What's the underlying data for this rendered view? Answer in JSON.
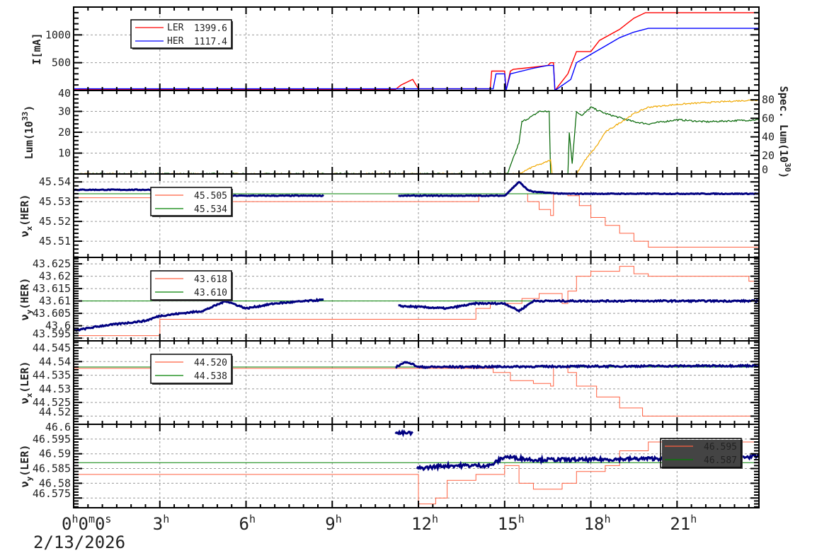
{
  "chart_data": [
    {
      "type": "line",
      "ylabel": [
        "I[mA]"
      ],
      "ylim": [
        0,
        1500
      ],
      "yticks": [
        500,
        1000
      ],
      "ytick_labels": [
        "500",
        "1000"
      ],
      "legend": [
        {
          "name": "LER",
          "value": "1399.6",
          "color": "#ff0000"
        },
        {
          "name": "HER",
          "value": "1117.4",
          "color": "#0000ff"
        }
      ],
      "series": [
        {
          "name": "LER",
          "color": "#ff0000",
          "width": 1.4,
          "x": [
            0,
            11.2,
            11.4,
            11.8,
            12.0,
            14.5,
            14.55,
            15.0,
            15.05,
            15.2,
            15.3,
            16.0,
            16.5,
            16.6,
            16.7,
            16.75,
            17.2,
            17.5,
            18.0,
            18.3,
            19.0,
            19.5,
            19.9,
            23.85
          ],
          "y": [
            20,
            20,
            100,
            200,
            30,
            30,
            350,
            350,
            0,
            350,
            380,
            420,
            450,
            500,
            500,
            0,
            300,
            700,
            700,
            900,
            1100,
            1300,
            1400,
            1400
          ]
        },
        {
          "name": "HER",
          "color": "#0000ff",
          "width": 1.4,
          "x": [
            0,
            14.6,
            14.7,
            15.0,
            15.05,
            15.2,
            16.0,
            16.5,
            16.7,
            16.75,
            17.3,
            17.5,
            18.0,
            18.5,
            19.0,
            19.5,
            20.0,
            23.85
          ],
          "y": [
            30,
            30,
            300,
            300,
            0,
            300,
            400,
            450,
            450,
            0,
            200,
            500,
            650,
            800,
            950,
            1050,
            1117,
            1117
          ]
        }
      ]
    },
    {
      "type": "line",
      "ylabel": [
        "Lum(10",
        "33",
        ")"
      ],
      "ylim": [
        0,
        40
      ],
      "yticks": [
        10,
        20,
        30,
        40
      ],
      "ytick_labels": [
        "10",
        "20",
        "30",
        "40"
      ],
      "y2label": [
        "Spec. Lum(10",
        "30",
        ")"
      ],
      "y2lim": [
        0,
        90
      ],
      "y2ticks": [
        0,
        20,
        40,
        60,
        80
      ],
      "y2tick_labels": [
        "0",
        "20",
        "40",
        "60",
        "80"
      ],
      "series": [
        {
          "name": "Lum",
          "axis": "left",
          "color": "#006400",
          "width": 1.2,
          "noise": 0.8,
          "x": [
            0,
            15.1,
            15.5,
            15.6,
            16.0,
            16.2,
            16.55,
            16.6,
            17.2,
            17.25,
            17.35,
            17.5,
            17.7,
            18.0,
            18.5,
            19.0,
            19.5,
            20.0,
            21.0,
            22.0,
            23.85
          ],
          "y": [
            0,
            0,
            15,
            25,
            28,
            30,
            30,
            0,
            0,
            20,
            5,
            30,
            28,
            32,
            29,
            27,
            25,
            24,
            26,
            25,
            26
          ]
        },
        {
          "name": "Spec. Lum",
          "axis": "right",
          "color": "#f0a800",
          "width": 1.2,
          "noise": 1.5,
          "x": [
            0,
            15.5,
            16.0,
            16.3,
            16.6,
            16.65,
            17.5,
            17.8,
            18.2,
            18.5,
            19.0,
            19.5,
            20.0,
            21.0,
            22.0,
            23.85
          ],
          "y": [
            0,
            0,
            8,
            11,
            15,
            0,
            0,
            15,
            30,
            45,
            55,
            65,
            72,
            75,
            77,
            80
          ]
        }
      ]
    },
    {
      "type": "line",
      "ylabel": [
        "ν",
        "x",
        "(HER)"
      ],
      "ylim": [
        45.5018,
        45.544
      ],
      "yticks": [
        45.51,
        45.52,
        45.53,
        45.54
      ],
      "ytick_labels": [
        "45.51",
        "45.52",
        "45.53",
        "45.54"
      ],
      "legend": [
        {
          "value": "45.505",
          "color": "#ff6040"
        },
        {
          "value": "45.534",
          "color": "#008000"
        }
      ],
      "series": [
        {
          "name": "set",
          "color": "#ff6040",
          "width": 1,
          "step": true,
          "x": [
            0,
            3,
            14,
            14.1,
            15.5,
            15.8,
            16.2,
            16.6,
            16.7,
            17.2,
            17.6,
            18.0,
            18.5,
            19.0,
            19.5,
            20.0,
            23.85
          ],
          "y": [
            45.532,
            45.53,
            45.53,
            45.534,
            45.534,
            45.53,
            45.526,
            45.523,
            45.534,
            45.533,
            45.528,
            45.522,
            45.518,
            45.514,
            45.51,
            45.507,
            45.507
          ]
        },
        {
          "name": "ref",
          "color": "#008000",
          "width": 1,
          "x": [
            0,
            23.85
          ],
          "y": [
            45.534,
            45.534
          ]
        },
        {
          "name": "measured",
          "color": "#000080",
          "width": 3,
          "noise": 0.0004,
          "gaps": [
            [
              8.7,
              11.3
            ]
          ],
          "x": [
            0,
            3,
            3.1,
            8.7,
            11.3,
            15.0,
            15.5,
            15.8,
            16.0,
            17.0,
            23.85
          ],
          "y": [
            45.536,
            45.536,
            45.533,
            45.533,
            45.533,
            45.533,
            45.54,
            45.536,
            45.535,
            45.534,
            45.534
          ]
        }
      ]
    },
    {
      "type": "line",
      "ylabel": [
        "ν",
        "y",
        "(HER)"
      ],
      "ylim": [
        43.5939,
        43.6276
      ],
      "yticks": [
        43.595,
        43.6,
        43.605,
        43.61,
        43.615,
        43.62,
        43.625
      ],
      "ytick_labels": [
        "43.595",
        "43.6",
        "43.605",
        "43.61",
        "43.615",
        "43.62",
        "43.625"
      ],
      "legend": [
        {
          "value": "43.618",
          "color": "#ff6040"
        },
        {
          "value": "43.610",
          "color": "#008000"
        }
      ],
      "series": [
        {
          "name": "set",
          "color": "#ff6040",
          "width": 1,
          "step": true,
          "x": [
            0,
            3,
            13.9,
            14.0,
            14.5,
            15.6,
            16.2,
            17.0,
            17.2,
            17.5,
            18.0,
            19.0,
            19.5,
            20.0,
            23.5,
            23.85
          ],
          "y": [
            43.596,
            43.6026,
            43.6026,
            43.607,
            43.609,
            43.611,
            43.613,
            43.609,
            43.614,
            43.62,
            43.622,
            43.624,
            43.621,
            43.62,
            43.618,
            43.618
          ]
        },
        {
          "name": "ref",
          "color": "#008000",
          "width": 1,
          "x": [
            0,
            23.85
          ],
          "y": [
            43.61,
            43.61
          ]
        },
        {
          "name": "measured",
          "color": "#000080",
          "width": 3,
          "noise": 0.0006,
          "gaps": [
            [
              8.7,
              11.3
            ]
          ],
          "x": [
            0,
            1,
            2.5,
            3.0,
            4.5,
            5.3,
            6.0,
            7.0,
            8.7,
            11.3,
            13.0,
            14.0,
            15.0,
            15.5,
            16.0,
            23.85
          ],
          "y": [
            43.598,
            43.6,
            43.602,
            43.604,
            43.606,
            43.61,
            43.607,
            43.609,
            43.6105,
            43.608,
            43.607,
            43.609,
            43.609,
            43.606,
            43.61,
            43.61
          ]
        }
      ]
    },
    {
      "type": "line",
      "ylabel": [
        "ν",
        "x",
        "(LER)"
      ],
      "ylim": [
        44.517,
        44.5476
      ],
      "yticks": [
        44.52,
        44.525,
        44.53,
        44.535,
        44.54,
        44.545
      ],
      "ytick_labels": [
        "44.52",
        "44.525",
        "44.53",
        "44.535",
        "44.54",
        "44.545"
      ],
      "legend": [
        {
          "value": "44.520",
          "color": "#ff6040"
        },
        {
          "value": "44.538",
          "color": "#008000"
        }
      ],
      "series": [
        {
          "name": "set",
          "color": "#ff6040",
          "width": 1,
          "step": true,
          "x": [
            0,
            14.6,
            15.2,
            16.0,
            16.6,
            16.7,
            17.2,
            17.5,
            18.2,
            19.0,
            19.8,
            23.85
          ],
          "y": [
            44.5375,
            44.536,
            44.533,
            44.532,
            44.531,
            44.538,
            44.536,
            44.531,
            44.527,
            44.523,
            44.52,
            44.52
          ]
        },
        {
          "name": "ref",
          "color": "#008000",
          "width": 1,
          "x": [
            0,
            23.85
          ],
          "y": [
            44.538,
            44.538
          ]
        },
        {
          "name": "measured",
          "color": "#000080",
          "width": 3,
          "noise": 0.0006,
          "x": [
            11.2,
            11.6,
            12.0,
            23.85
          ],
          "y": [
            44.538,
            44.54,
            44.538,
            44.5385
          ]
        }
      ]
    },
    {
      "type": "line",
      "ylabel": [
        "ν",
        "y",
        "(LER)"
      ],
      "ylim": [
        46.5717,
        46.6
      ],
      "yticks": [
        46.575,
        46.58,
        46.585,
        46.59,
        46.595,
        46.6
      ],
      "ytick_labels": [
        "46.575",
        "46.58",
        "46.585",
        "46.59",
        "46.595",
        "46.6"
      ],
      "legend": [
        {
          "value": "46.595",
          "color": "#ff6040"
        },
        {
          "value": "46.587",
          "color": "#008000"
        }
      ],
      "series": [
        {
          "name": "set",
          "color": "#ff6040",
          "width": 1,
          "step": true,
          "x": [
            0,
            11.9,
            12.0,
            12.6,
            13.0,
            14.0,
            15.0,
            15.5,
            16.0,
            17.0,
            17.5,
            18.5,
            19.0,
            20.0,
            23.85
          ],
          "y": [
            46.583,
            46.583,
            46.573,
            46.575,
            46.581,
            46.583,
            46.586,
            46.58,
            46.578,
            46.58,
            46.584,
            46.586,
            46.591,
            46.594,
            46.595
          ]
        },
        {
          "name": "ref",
          "color": "#008000",
          "width": 1,
          "x": [
            0,
            23.85
          ],
          "y": [
            46.587,
            46.587
          ]
        },
        {
          "name": "measured",
          "color": "#000080",
          "width": 3,
          "noise": 0.0012,
          "gaps": [
            [
              11.8,
              11.95
            ]
          ],
          "x": [
            11.2,
            11.8,
            11.95,
            13.0,
            14.5,
            15.0,
            16.0,
            17.0,
            18.0,
            23.85
          ],
          "y": [
            46.597,
            46.597,
            46.585,
            46.586,
            46.586,
            46.589,
            46.588,
            46.588,
            46.588,
            46.589
          ]
        }
      ]
    }
  ],
  "xaxis": {
    "xlim": [
      0,
      23.85
    ],
    "tick_values": [
      0,
      3,
      6,
      9,
      12,
      15,
      18,
      21
    ],
    "tick_labels": [
      "0h0m0s",
      "3h",
      "6h",
      "9h",
      "12h",
      "15h",
      "18h",
      "21h"
    ],
    "date": "2/13/2026"
  }
}
